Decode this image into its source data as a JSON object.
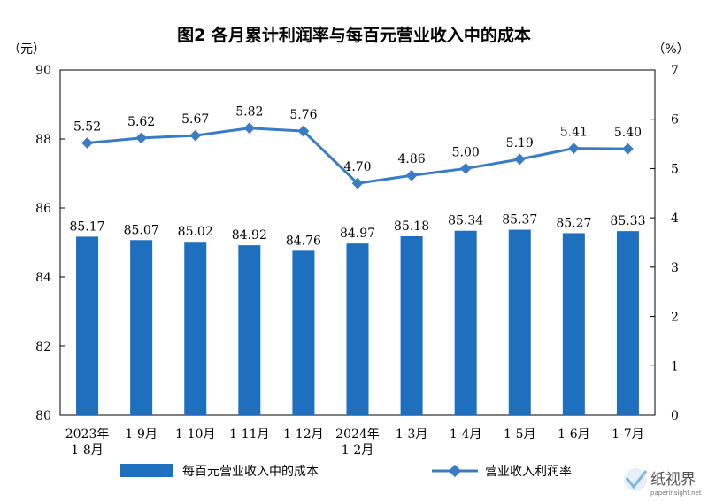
{
  "chart_data": {
    "type": "bar",
    "title": "图2  各月累计利润率与每百元营业收入中的成本",
    "categories": [
      "2023年\n1-8月",
      "1-9月",
      "1-10月",
      "1-11月",
      "1-12月",
      "2024年\n1-2月",
      "1-3月",
      "1-4月",
      "1-5月",
      "1-6月",
      "1-7月"
    ],
    "series": [
      {
        "name": "每百元营业收入中的成本",
        "type": "bar",
        "axis": "left",
        "values": [
          85.17,
          85.07,
          85.02,
          84.92,
          84.76,
          84.97,
          85.18,
          85.34,
          85.37,
          85.27,
          85.33
        ]
      },
      {
        "name": "营业收入利润率",
        "type": "line",
        "axis": "right",
        "values": [
          5.52,
          5.62,
          5.67,
          5.82,
          5.76,
          4.7,
          4.86,
          5.0,
          5.19,
          5.41,
          5.4
        ]
      }
    ],
    "left_axis": {
      "unit": "（元）",
      "ylim": [
        80,
        90
      ],
      "ticks": [
        "80",
        "82",
        "84",
        "86",
        "88",
        "90"
      ]
    },
    "right_axis": {
      "unit": "（%）",
      "ylim": [
        0,
        7
      ],
      "ticks": [
        "0",
        "1",
        "2",
        "3",
        "4",
        "5",
        "6",
        "7"
      ]
    },
    "colors": {
      "bar": "#1f6fbf",
      "line": "#3a7cc4"
    },
    "grid": false,
    "legend_position": "bottom"
  },
  "watermark": {
    "text": "纸视界",
    "url": "paperinsight.net"
  }
}
